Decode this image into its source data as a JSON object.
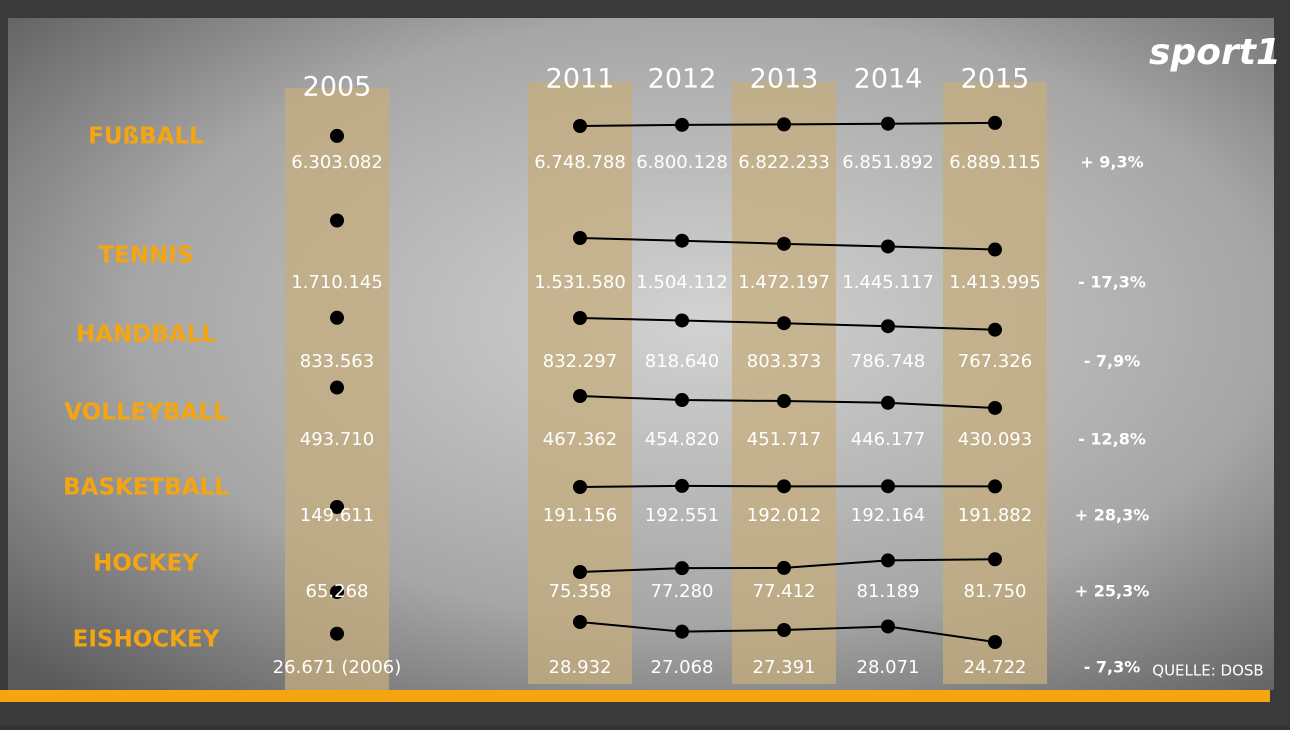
{
  "chart_data": {
    "type": "line",
    "brand": "sport1",
    "source": "QUELLE: DOSB",
    "categories": [
      "2005",
      "2011",
      "2012",
      "2013",
      "2014",
      "2015"
    ],
    "series": [
      {
        "name": "FUßBALL",
        "color": "#000000",
        "values": [
          6303082,
          6748788,
          6800128,
          6822233,
          6851892,
          6889115
        ],
        "value_labels": [
          "6.303.082",
          "6.748.788",
          "6.800.128",
          "6.822.233",
          "6.851.892",
          "6.889.115"
        ],
        "change": {
          "value": 9.3,
          "label": "+ 9,3%"
        }
      },
      {
        "name": "TENNIS",
        "color": "#000000",
        "values": [
          1710145,
          1531580,
          1504112,
          1472197,
          1445117,
          1413995
        ],
        "value_labels": [
          "1.710.145",
          "1.531.580",
          "1.504.112",
          "1.472.197",
          "1.445.117",
          "1.413.995"
        ],
        "change": {
          "value": -17.3,
          "label": "- 17,3%"
        }
      },
      {
        "name": "HANDBALL",
        "color": "#000000",
        "values": [
          833563,
          832297,
          818640,
          803373,
          786748,
          767326
        ],
        "value_labels": [
          "833.563",
          "832.297",
          "818.640",
          "803.373",
          "786.748",
          "767.326"
        ],
        "change": {
          "value": -7.9,
          "label": "- 7,9%"
        }
      },
      {
        "name": "VOLLEYBALL",
        "color": "#000000",
        "values": [
          493710,
          467362,
          454820,
          451717,
          446177,
          430093
        ],
        "value_labels": [
          "493.710",
          "467.362",
          "454.820",
          "451.717",
          "446.177",
          "430.093"
        ],
        "change": {
          "value": -12.8,
          "label": "- 12,8%"
        }
      },
      {
        "name": "BASKETBALL",
        "color": "#000000",
        "values": [
          149611,
          191156,
          192551,
          192012,
          192164,
          191882
        ],
        "value_labels": [
          "149.611",
          "191.156",
          "192.551",
          "192.012",
          "192.164",
          "191.882"
        ],
        "change": {
          "value": 28.3,
          "label": "+ 28,3%"
        }
      },
      {
        "name": "HOCKEY",
        "color": "#000000",
        "values": [
          65268,
          75358,
          77280,
          77412,
          81189,
          81750
        ],
        "value_labels": [
          "65.268",
          "75.358",
          "77.280",
          "77.412",
          "81.189",
          "81.750"
        ],
        "change": {
          "value": 25.3,
          "label": "+ 25,3%"
        }
      },
      {
        "name": "EISHOCKEY",
        "color": "#000000",
        "values": [
          26671,
          28932,
          27068,
          27391,
          28071,
          24722
        ],
        "value_labels": [
          "26.671 (2006)",
          "28.932",
          "27.068",
          "27.391",
          "28.071",
          "24.722"
        ],
        "change": {
          "value": -7.3,
          "label": "- 7,3%"
        }
      }
    ]
  }
}
